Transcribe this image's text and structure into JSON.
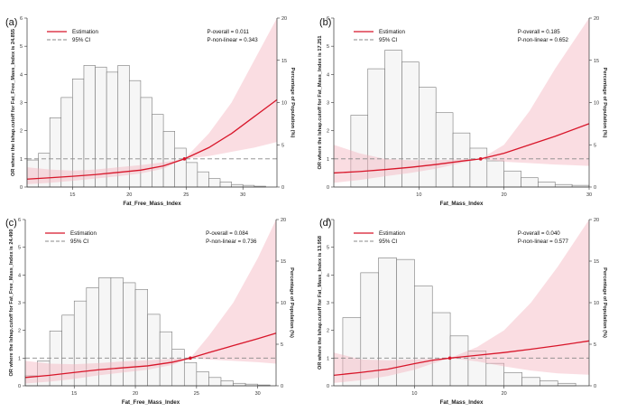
{
  "chart_data": [
    {
      "type": "line",
      "panel_label": "(a)",
      "xlabel": "Fat_Free_Mass_Index",
      "ylabel": "OR where the lshap.cutoff for Fat_Free_Mass_Index is 24.855",
      "ylabel2": "Percentage of Population (%)",
      "legend": [
        "Estimation",
        "95% CI"
      ],
      "p_overall": "P-overall = 0.011",
      "p_nonlinear": "P-non-linear = 0.343",
      "xlim": [
        11,
        33
      ],
      "ylim": [
        0,
        6
      ],
      "y2lim": [
        0,
        20
      ],
      "x_ticks": [
        15,
        20,
        25,
        30
      ],
      "y_ticks": [
        0,
        1,
        2,
        3,
        4,
        5,
        6
      ],
      "y2_ticks": [
        0,
        5,
        10,
        15,
        20
      ],
      "cutoff": 24.855,
      "curve": {
        "x": [
          11,
          13,
          15,
          17,
          19,
          21,
          23,
          24.855,
          27,
          29,
          31,
          33
        ],
        "y": [
          0.28,
          0.33,
          0.38,
          0.44,
          0.52,
          0.6,
          0.75,
          1.0,
          1.4,
          1.9,
          2.5,
          3.1
        ]
      },
      "ci_lower": [
        0.1,
        0.15,
        0.22,
        0.3,
        0.38,
        0.48,
        0.65,
        1.0,
        1.1,
        1.25,
        1.4,
        1.6
      ],
      "ci_upper": [
        0.7,
        0.62,
        0.58,
        0.62,
        0.7,
        0.78,
        0.88,
        1.0,
        1.9,
        3.0,
        4.5,
        6.0
      ],
      "hist": {
        "edges": [
          11,
          12,
          13,
          14,
          15,
          16,
          17,
          18,
          19,
          20,
          21,
          22,
          23,
          24,
          25,
          26,
          27,
          28,
          29,
          30,
          31,
          32
        ],
        "pct": [
          3.2,
          4.0,
          8.2,
          10.6,
          12.8,
          14.4,
          14.2,
          13.6,
          14.4,
          12.6,
          10.6,
          8.6,
          6.6,
          4.6,
          2.9,
          1.8,
          1.0,
          0.6,
          0.3,
          0.2,
          0.1
        ]
      }
    },
    {
      "type": "line",
      "panel_label": "(b)",
      "xlabel": "Fat_Mass_Index",
      "ylabel": "OR where the lshap.cutoff for Fat_Mass_Index is 17.251",
      "ylabel2": "Percentage of Population (%)",
      "legend": [
        "Estimation",
        "95% CI"
      ],
      "p_overall": "P-overall = 0.185",
      "p_nonlinear": "P-non-linear = 0.652",
      "xlim": [
        0,
        30
      ],
      "ylim": [
        0,
        6
      ],
      "y2lim": [
        0,
        20
      ],
      "x_ticks": [
        10,
        20,
        30
      ],
      "y_ticks": [
        0,
        1,
        2,
        3,
        4,
        5,
        6
      ],
      "y2_ticks": [
        0,
        5,
        10,
        15,
        20
      ],
      "cutoff": 17.251,
      "curve": {
        "x": [
          0,
          3,
          6,
          9,
          12,
          15,
          17.251,
          20,
          23,
          26,
          30
        ],
        "y": [
          0.5,
          0.55,
          0.62,
          0.7,
          0.8,
          0.92,
          1.0,
          1.2,
          1.5,
          1.8,
          2.25
        ]
      },
      "ci_lower": [
        0.15,
        0.25,
        0.38,
        0.5,
        0.65,
        0.85,
        1.0,
        0.9,
        0.85,
        0.8,
        0.75
      ],
      "ci_upper": [
        1.5,
        1.2,
        1.0,
        0.95,
        0.95,
        0.98,
        1.0,
        1.5,
        2.7,
        4.2,
        6.0
      ],
      "hist": {
        "edges": [
          2,
          4,
          6,
          8,
          10,
          12,
          14,
          16,
          18,
          20,
          22,
          24,
          26,
          28,
          30
        ],
        "pct": [
          8.5,
          14.0,
          16.2,
          14.8,
          11.8,
          8.8,
          6.4,
          4.6,
          3.1,
          1.9,
          1.1,
          0.6,
          0.3,
          0.2
        ]
      }
    },
    {
      "type": "line",
      "panel_label": "(c)",
      "xlabel": "Fat_Free_Mass_Index",
      "ylabel": "OR where the lshap.cutoff for Fat_Free_Mass_Index is 24.490",
      "ylabel2": "Percentage of Population (%)",
      "legend": [
        "Estimation",
        "95% CI"
      ],
      "p_overall": "P-overall = 0.084",
      "p_nonlinear": "P-non-linear = 0.736",
      "xlim": [
        11,
        31.5
      ],
      "ylim": [
        0,
        6
      ],
      "y2lim": [
        0,
        20
      ],
      "x_ticks": [
        15,
        20,
        25,
        30
      ],
      "y_ticks": [
        0,
        1,
        2,
        3,
        4,
        5,
        6
      ],
      "y2_ticks": [
        0,
        5,
        10,
        15,
        20
      ],
      "cutoff": 24.49,
      "curve": {
        "x": [
          11,
          13,
          15,
          17,
          19,
          21,
          23,
          24.49,
          26,
          28,
          30,
          31.5
        ],
        "y": [
          0.3,
          0.38,
          0.48,
          0.58,
          0.65,
          0.72,
          0.85,
          1.0,
          1.2,
          1.45,
          1.7,
          1.9
        ]
      },
      "ci_lower": [
        0.08,
        0.15,
        0.25,
        0.38,
        0.48,
        0.58,
        0.75,
        1.0,
        0.95,
        0.9,
        0.85,
        0.8
      ],
      "ci_upper": [
        0.9,
        0.8,
        0.78,
        0.82,
        0.88,
        0.92,
        0.97,
        1.0,
        1.8,
        3.0,
        4.6,
        6.0
      ],
      "hist": {
        "edges": [
          11,
          12,
          13,
          14,
          15,
          16,
          17,
          18,
          19,
          20,
          21,
          22,
          23,
          24,
          25,
          26,
          27,
          28,
          29,
          30,
          31
        ],
        "pct": [
          1.2,
          3.0,
          6.6,
          8.5,
          10.2,
          11.8,
          13.0,
          13.0,
          12.4,
          11.6,
          8.6,
          6.5,
          4.4,
          2.8,
          1.7,
          1.0,
          0.6,
          0.3,
          0.2,
          0.1
        ]
      }
    },
    {
      "type": "line",
      "panel_label": "(d)",
      "xlabel": "Fat_Mass_Index",
      "ylabel": "OR where the lshap.cutoff for Fat_Mass_Index is 13.958",
      "ylabel2": "Percentage of Population (%)",
      "legend": [
        "Estimation",
        "95% CI"
      ],
      "p_overall": "P-overall = 0.040",
      "p_nonlinear": "P-non-linear = 0.577",
      "xlim": [
        1,
        29.5
      ],
      "ylim": [
        0,
        6
      ],
      "y2lim": [
        0,
        20
      ],
      "x_ticks": [
        10,
        20
      ],
      "y_ticks": [
        0,
        1,
        2,
        3,
        4,
        5,
        6
      ],
      "y2_ticks": [
        0,
        5,
        10,
        15,
        20
      ],
      "cutoff": 13.958,
      "curve": {
        "x": [
          1,
          4,
          7,
          10,
          12,
          13.958,
          17,
          20,
          23,
          26,
          29.5
        ],
        "y": [
          0.38,
          0.48,
          0.6,
          0.8,
          0.92,
          1.0,
          1.1,
          1.2,
          1.32,
          1.45,
          1.62
        ]
      },
      "ci_lower": [
        0.1,
        0.2,
        0.35,
        0.58,
        0.8,
        1.0,
        0.88,
        0.7,
        0.55,
        0.45,
        0.4
      ],
      "ci_upper": [
        1.2,
        0.95,
        0.92,
        0.95,
        0.98,
        1.0,
        1.4,
        2.0,
        3.0,
        4.3,
        6.0
      ],
      "hist": {
        "edges": [
          2,
          4,
          6,
          8,
          10,
          12,
          14,
          16,
          18,
          20,
          22,
          24,
          26,
          28
        ],
        "pct": [
          8.2,
          13.6,
          15.4,
          15.2,
          12.0,
          8.8,
          6.0,
          4.2,
          2.7,
          1.6,
          1.0,
          0.6,
          0.3
        ]
      }
    }
  ]
}
